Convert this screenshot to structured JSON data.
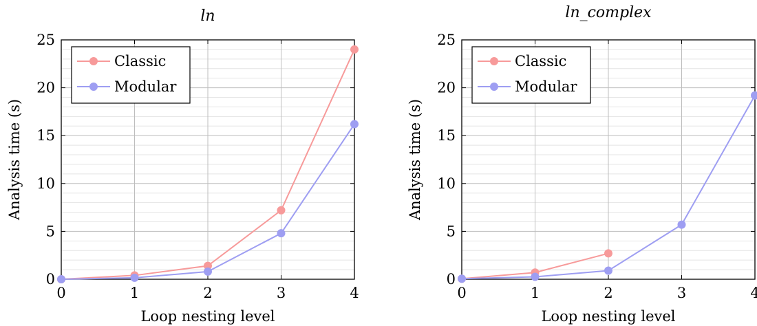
{
  "chart_data": [
    {
      "type": "line",
      "title": "ln",
      "xlabel": "Loop nesting level",
      "ylabel": "Analysis time (s)",
      "xlim": [
        0,
        4
      ],
      "ylim": [
        0,
        25
      ],
      "x_ticks": [
        "0",
        "1",
        "2",
        "3",
        "4"
      ],
      "y_ticks": [
        "0",
        "5",
        "10",
        "15",
        "20",
        "25"
      ],
      "grid": true,
      "legend_position": "top-left",
      "series": [
        {
          "name": "Classic",
          "color": "#f79a9a",
          "x": [
            0,
            1,
            2,
            3,
            4
          ],
          "y": [
            0.0,
            0.4,
            1.4,
            7.2,
            24.0
          ]
        },
        {
          "name": "Modular",
          "color": "#9e9ef2",
          "x": [
            0,
            1,
            2,
            3,
            4
          ],
          "y": [
            0.0,
            0.15,
            0.8,
            4.8,
            16.2
          ]
        }
      ]
    },
    {
      "type": "line",
      "title": "ln_complex",
      "xlabel": "Loop nesting level",
      "ylabel": "Analysis time (s)",
      "xlim": [
        0,
        4
      ],
      "ylim": [
        0,
        25
      ],
      "x_ticks": [
        "0",
        "1",
        "2",
        "3",
        "4"
      ],
      "y_ticks": [
        "0",
        "5",
        "10",
        "15",
        "20",
        "25"
      ],
      "grid": true,
      "legend_position": "top-left",
      "series": [
        {
          "name": "Classic",
          "color": "#f79a9a",
          "x": [
            0,
            1,
            2
          ],
          "y": [
            0.05,
            0.7,
            2.7
          ]
        },
        {
          "name": "Modular",
          "color": "#9e9ef2",
          "x": [
            0,
            1,
            2,
            3,
            4
          ],
          "y": [
            0.05,
            0.25,
            0.9,
            5.7,
            19.2
          ]
        }
      ]
    }
  ]
}
